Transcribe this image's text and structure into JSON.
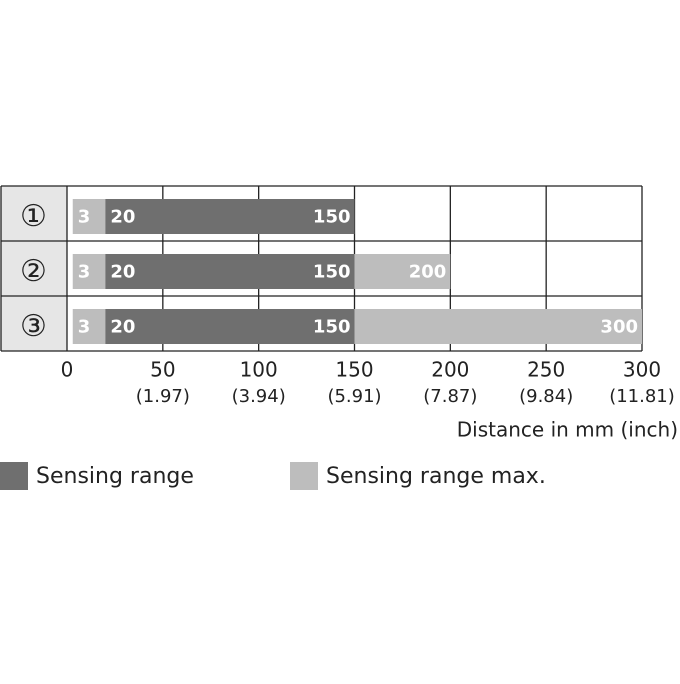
{
  "chart_data": {
    "type": "range_bar",
    "rows": [
      {
        "label": "①",
        "points": [
          3,
          20,
          150
        ],
        "fills": [
          1,
          0
        ]
      },
      {
        "label": "②",
        "points": [
          3,
          20,
          150,
          200
        ],
        "fills": [
          1,
          0,
          1
        ]
      },
      {
        "label": "③",
        "points": [
          3,
          20,
          150,
          300
        ],
        "fills": [
          1,
          0,
          1
        ]
      }
    ],
    "series": [
      {
        "name": "Sensing range",
        "color": "#6f6f6f"
      },
      {
        "name": "Sensing range max.",
        "color": "#bdbdbd"
      }
    ],
    "xlim": [
      0,
      300
    ],
    "xticks": [
      0,
      50,
      100,
      150,
      200,
      250,
      300
    ],
    "xtick_sublabels": [
      null,
      "(1.97)",
      "(3.94)",
      "(5.91)",
      "(7.87)",
      "(9.84)",
      "(11.81)"
    ],
    "xlabel": "Distance in mm (inch)",
    "grid": true
  }
}
